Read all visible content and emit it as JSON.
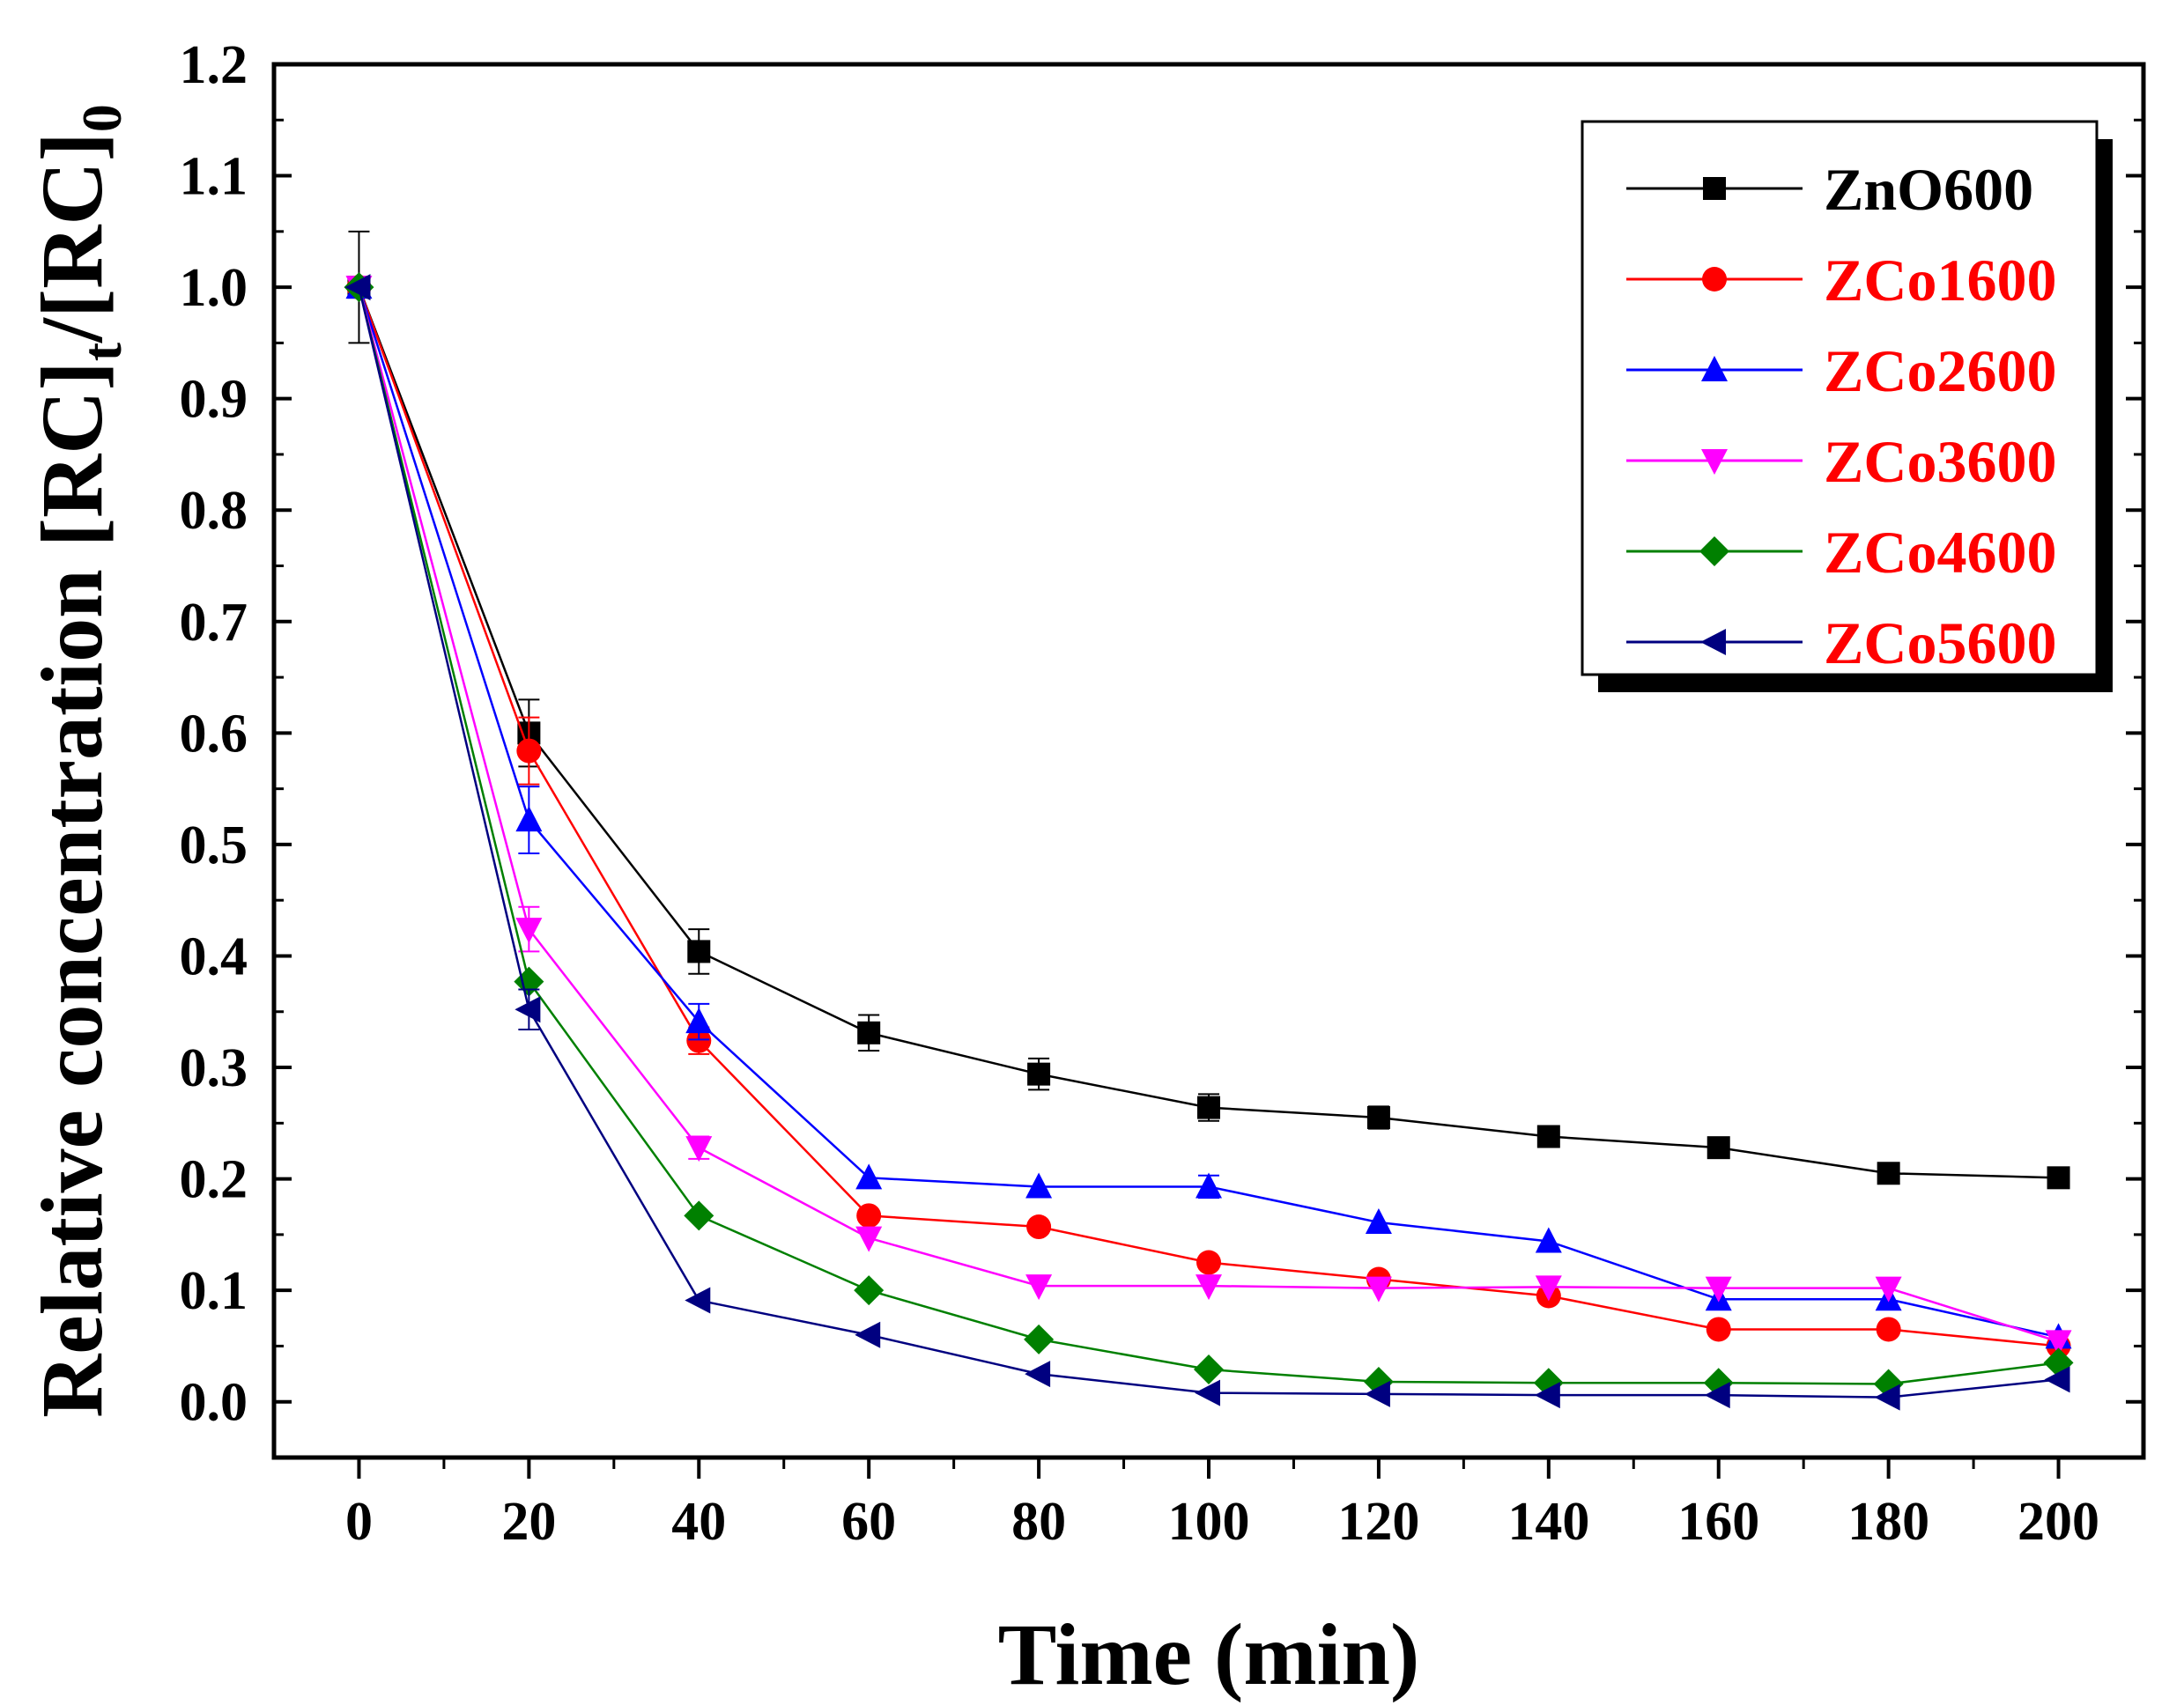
{
  "chart_data": {
    "type": "line",
    "title": "",
    "xlabel": "Time (min)",
    "ylabel": {
      "main": "Relative concentration [RC]",
      "sub_t": "t",
      "slash": "/[RC]",
      "sub_0": "0"
    },
    "xlim": [
      -10,
      210
    ],
    "ylim": [
      -0.05,
      1.2
    ],
    "xticks": [
      0,
      20,
      40,
      60,
      80,
      100,
      120,
      140,
      160,
      180,
      200
    ],
    "xtick_labels": [
      "0",
      "20",
      "40",
      "60",
      "80",
      "100",
      "120",
      "140",
      "160",
      "180",
      "200"
    ],
    "yticks": [
      0.0,
      0.1,
      0.2,
      0.3,
      0.4,
      0.5,
      0.6,
      0.7,
      0.8,
      0.9,
      1.0,
      1.1,
      1.2
    ],
    "ytick_labels": [
      "0.0",
      "0.1",
      "0.2",
      "0.3",
      "0.4",
      "0.5",
      "0.6",
      "0.7",
      "0.8",
      "0.9",
      "1.0",
      "1.1",
      "1.2"
    ],
    "legend_position": "top-right",
    "x": [
      0,
      20,
      40,
      60,
      80,
      100,
      120,
      140,
      160,
      180,
      200
    ],
    "series": [
      {
        "name": "ZnO600",
        "color": "#000000",
        "label_color": "#000000",
        "marker": "square",
        "values": [
          1.0,
          0.6,
          0.404,
          0.331,
          0.294,
          0.264,
          0.255,
          0.238,
          0.228,
          0.205,
          0.201
        ],
        "errors": [
          0.05,
          0.03,
          0.02,
          0.016,
          0.014,
          0.012,
          0.01,
          0.008,
          0.008,
          0.006,
          0.006
        ]
      },
      {
        "name": "ZCo1600",
        "color": "#ff0000",
        "label_color": "#ff0000",
        "marker": "circle",
        "values": [
          1.0,
          0.584,
          0.324,
          0.167,
          0.157,
          0.125,
          0.11,
          0.095,
          0.065,
          0.065,
          0.05
        ],
        "errors": [
          0.0,
          0.03,
          0.012,
          0.0,
          0.0,
          0.0,
          0.0,
          0.0,
          0.0,
          0.0,
          0.0
        ]
      },
      {
        "name": "ZCo2600",
        "color": "#0000ff",
        "label_color": "#ff0000",
        "marker": "triangle-up",
        "values": [
          1.0,
          0.522,
          0.341,
          0.201,
          0.193,
          0.193,
          0.161,
          0.144,
          0.092,
          0.092,
          0.058
        ],
        "errors": [
          0.0,
          0.03,
          0.016,
          0.0,
          0.0,
          0.01,
          0.0,
          0.0,
          0.0,
          0.0,
          0.0
        ]
      },
      {
        "name": "ZCo3600",
        "color": "#ff00ff",
        "label_color": "#ff0000",
        "marker": "triangle-down",
        "values": [
          1.0,
          0.424,
          0.228,
          0.147,
          0.104,
          0.104,
          0.102,
          0.103,
          0.102,
          0.102,
          0.054
        ],
        "errors": [
          0.0,
          0.02,
          0.01,
          0.0,
          0.0,
          0.0,
          0.0,
          0.0,
          0.0,
          0.0,
          0.0
        ]
      },
      {
        "name": "ZCo4600",
        "color": "#008000",
        "label_color": "#ff0000",
        "marker": "diamond",
        "values": [
          1.0,
          0.377,
          0.167,
          0.1,
          0.056,
          0.029,
          0.018,
          0.017,
          0.017,
          0.016,
          0.035
        ],
        "errors": [
          0.0,
          0.0,
          0.0,
          0.0,
          0.0,
          0.0,
          0.0,
          0.0,
          0.0,
          0.0,
          0.0
        ]
      },
      {
        "name": "ZCo5600",
        "color": "#000080",
        "label_color": "#ff0000",
        "marker": "triangle-left",
        "values": [
          1.0,
          0.352,
          0.091,
          0.06,
          0.025,
          0.008,
          0.007,
          0.006,
          0.006,
          0.004,
          0.02
        ],
        "errors": [
          0.0,
          0.018,
          0.0,
          0.0,
          0.0,
          0.0,
          0.0,
          0.0,
          0.0,
          0.0,
          0.0
        ]
      }
    ]
  }
}
